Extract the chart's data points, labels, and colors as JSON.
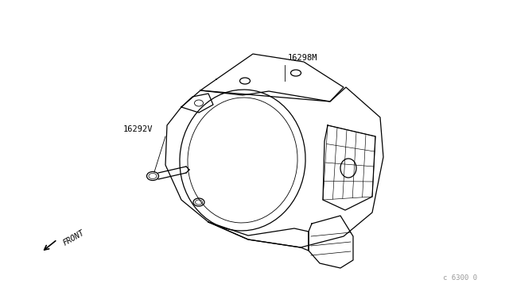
{
  "bg_color": "#ffffff",
  "line_color": "#000000",
  "label_16298M": "16298M",
  "label_16292V": "16292V",
  "label_front": "FRONT",
  "label_partnum": "c 6300 0",
  "figsize": [
    6.4,
    3.72
  ],
  "dpi": 100
}
